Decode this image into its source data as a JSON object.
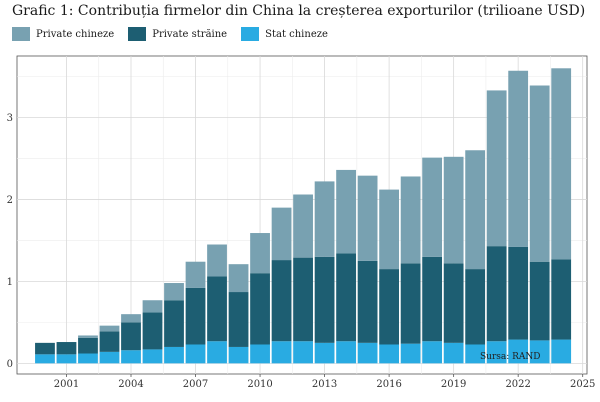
{
  "title": "Grafic 1: Contribuția firmelor din China la creșterea exporturilor (trilioane USD)",
  "source": "Sursa: RAND",
  "chart_data": {
    "type": "bar",
    "stacked": true,
    "title": "Grafic 1: Contribuția firmelor din China la creșterea exporturilor (trilioane USD)",
    "xlabel": "",
    "ylabel": "",
    "x": [
      2000,
      2001,
      2002,
      2003,
      2004,
      2005,
      2006,
      2007,
      2008,
      2009,
      2010,
      2011,
      2012,
      2013,
      2014,
      2015,
      2016,
      2017,
      2018,
      2019,
      2020,
      2021,
      2022,
      2023,
      2024
    ],
    "xlim": [
      1998.7,
      2025.2
    ],
    "xticks": [
      2001,
      2004,
      2007,
      2010,
      2013,
      2016,
      2019,
      2022,
      2025
    ],
    "ylim": [
      -0.13,
      3.75
    ],
    "yticks": [
      0,
      1,
      2,
      3
    ],
    "grid": true,
    "legend_position": "top-left",
    "series": [
      {
        "name": "Stat chineze",
        "color": "#29abe2",
        "values": [
          0.11,
          0.11,
          0.12,
          0.14,
          0.16,
          0.17,
          0.2,
          0.23,
          0.27,
          0.2,
          0.23,
          0.27,
          0.27,
          0.25,
          0.27,
          0.25,
          0.23,
          0.24,
          0.27,
          0.25,
          0.23,
          0.27,
          0.29,
          0.28,
          0.29
        ]
      },
      {
        "name": "Private străine",
        "color": "#1d5e72",
        "values": [
          0.14,
          0.15,
          0.19,
          0.25,
          0.34,
          0.45,
          0.57,
          0.69,
          0.79,
          0.67,
          0.87,
          0.99,
          1.02,
          1.05,
          1.07,
          1.0,
          0.92,
          0.98,
          1.03,
          0.97,
          0.92,
          1.16,
          1.13,
          0.96,
          0.98
        ]
      },
      {
        "name": "Private chineze",
        "color": "#78a1b1",
        "values": [
          0.0,
          0.0,
          0.03,
          0.07,
          0.1,
          0.15,
          0.21,
          0.32,
          0.39,
          0.34,
          0.49,
          0.64,
          0.77,
          0.92,
          1.02,
          1.04,
          0.97,
          1.06,
          1.21,
          1.3,
          1.45,
          1.9,
          2.15,
          2.15,
          2.33
        ]
      }
    ]
  }
}
